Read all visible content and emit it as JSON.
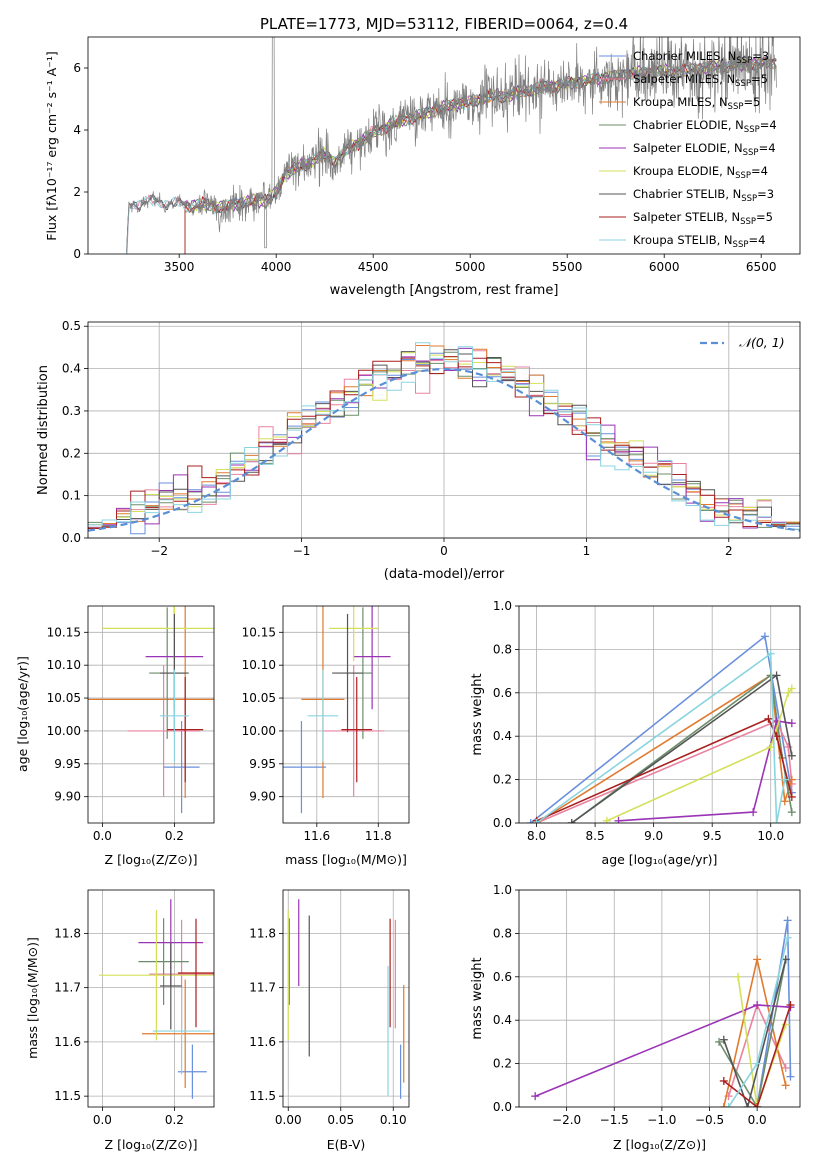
{
  "title": "PLATE=1773, MJD=53112, FIBERID=0064, z=0.4",
  "colors": [
    "#6a8fdc",
    "#e8829f",
    "#e07a2e",
    "#6b8e6b",
    "#9a34b6",
    "#d4e05a",
    "#555555",
    "#aa1f1f",
    "#8ad4df"
  ],
  "legend_spec": [
    {
      "main": "Chabrier MILES, N",
      "sub": "SSP",
      "tail": "=3"
    },
    {
      "main": "Salpeter MILES, N",
      "sub": "SSP",
      "tail": "=5"
    },
    {
      "main": "Kroupa MILES, N",
      "sub": "SSP",
      "tail": "=5"
    },
    {
      "main": "Chabrier ELODIE, N",
      "sub": "SSP",
      "tail": "=4"
    },
    {
      "main": "Salpeter ELODIE, N",
      "sub": "SSP",
      "tail": "=4"
    },
    {
      "main": "Kroupa ELODIE, N",
      "sub": "SSP",
      "tail": "=4"
    },
    {
      "main": "Chabrier STELIB, N",
      "sub": "SSP",
      "tail": "=3"
    },
    {
      "main": "Salpeter STELIB, N",
      "sub": "SSP",
      "tail": "=5"
    },
    {
      "main": "Kroupa STELIB, N",
      "sub": "SSP",
      "tail": "=4"
    }
  ],
  "chart_data": [
    {
      "type": "line",
      "xlabel": "wavelength [Angstrom, rest frame]",
      "ylabel": "Flux [fλ10⁻¹⁷ erg cm⁻² s⁻¹ A⁻¹]",
      "xlim": [
        3030,
        6700
      ],
      "ylim": [
        0,
        7
      ],
      "xticks": [
        3500,
        4000,
        4500,
        5000,
        5500,
        6000,
        6500
      ],
      "yticks": [
        0,
        2,
        4,
        6
      ],
      "spectrum_shape": [
        [
          3230,
          0
        ],
        [
          3240,
          1.6
        ],
        [
          3300,
          1.65
        ],
        [
          3400,
          1.7
        ],
        [
          3500,
          1.6
        ],
        [
          3550,
          1.55
        ],
        [
          3650,
          1.6
        ],
        [
          3700,
          1.5
        ],
        [
          3800,
          1.6
        ],
        [
          3900,
          1.75
        ],
        [
          3950,
          1.7
        ],
        [
          4000,
          2.0
        ],
        [
          4050,
          2.6
        ],
        [
          4150,
          2.9
        ],
        [
          4250,
          3.2
        ],
        [
          4300,
          3.0
        ],
        [
          4400,
          3.5
        ],
        [
          4500,
          3.9
        ],
        [
          4600,
          4.2
        ],
        [
          4700,
          4.4
        ],
        [
          4800,
          4.6
        ],
        [
          4900,
          4.8
        ],
        [
          5000,
          4.9
        ],
        [
          5100,
          5.1
        ],
        [
          5200,
          5.1
        ],
        [
          5300,
          5.3
        ],
        [
          5400,
          5.4
        ],
        [
          5500,
          5.5
        ],
        [
          5600,
          5.6
        ],
        [
          5700,
          5.7
        ],
        [
          5800,
          5.8
        ],
        [
          5900,
          5.85
        ],
        [
          6000,
          5.9
        ],
        [
          6100,
          5.9
        ],
        [
          6200,
          6.0
        ],
        [
          6300,
          6.05
        ],
        [
          6400,
          6.1
        ],
        [
          6500,
          6.15
        ],
        [
          6580,
          6.2
        ]
      ],
      "grid": false,
      "legend_position": "upper right"
    },
    {
      "type": "histogram",
      "xlabel": "(data-model)/error",
      "ylabel": "Normed distribution",
      "xlim": [
        -2.5,
        2.5
      ],
      "ylim": [
        0,
        0.51
      ],
      "xticks": [
        -2,
        -1,
        0,
        1,
        2
      ],
      "yticks": [
        0.0,
        0.1,
        0.2,
        0.3,
        0.4,
        0.5
      ],
      "ytick_labels": [
        "0.0",
        "0.1",
        "0.2",
        "0.3",
        "0.4",
        "0.5"
      ],
      "bin_width": 0.1,
      "legend": "𝒩(0, 1)",
      "grid": true
    },
    {
      "type": "scatter",
      "xlabel": "Z [log₁₀(Z/Z⊙)]",
      "ylabel": "age  [log₁₀(age/yr)]",
      "xlim": [
        -0.04,
        0.31
      ],
      "ylim": [
        9.86,
        10.19
      ],
      "xticks": [
        0.0,
        0.2
      ],
      "xtick_labels": [
        "0.0",
        "0.2"
      ],
      "yticks": [
        9.9,
        9.95,
        10.0,
        10.05,
        10.1,
        10.15
      ],
      "ytick_labels": [
        "9.90",
        "9.95",
        "10.00",
        "10.05",
        "10.10",
        "10.15"
      ],
      "points": [
        {
          "x": 0.22,
          "xerr": 0.05,
          "y": 9.945,
          "yerr": 0.07
        },
        {
          "x": 0.17,
          "xerr": 0.1,
          "y": 10.0,
          "yerr": 0.1
        },
        {
          "x": 0.23,
          "xerr": 0.27,
          "y": 10.048,
          "yerr": 0.15
        },
        {
          "x": 0.18,
          "xerr": 0.05,
          "y": 10.088,
          "yerr": 0.1
        },
        {
          "x": 0.2,
          "xerr": 0.08,
          "y": 10.113,
          "yerr": 0.08
        },
        {
          "x": 0.2,
          "xerr": 0.2,
          "y": 10.156,
          "yerr": 0.05
        },
        {
          "x": 0.2,
          "xerr": 0.04,
          "y": 10.088,
          "yerr": 0.09
        },
        {
          "x": 0.23,
          "xerr": 0.05,
          "y": 10.002,
          "yerr": 0.08
        },
        {
          "x": 0.2,
          "xerr": 0.04,
          "y": 10.023,
          "yerr": 0.07
        }
      ]
    },
    {
      "type": "scatter",
      "xlabel": "mass [log₁₀(M/M⊙)]",
      "ylabel": "",
      "xlim": [
        11.49,
        11.9
      ],
      "ylim": [
        9.86,
        10.19
      ],
      "xticks": [
        11.6,
        11.8
      ],
      "xtick_labels": [
        "11.6",
        "11.8"
      ],
      "yticks": [
        9.9,
        9.95,
        10.0,
        10.05,
        10.1,
        10.15
      ],
      "ytick_labels": [
        "9.90",
        "9.95",
        "10.00",
        "10.05",
        "10.10",
        "10.15"
      ],
      "points": [
        {
          "x": 11.55,
          "xerr": 0.08,
          "y": 9.945,
          "yerr": 0.07
        },
        {
          "x": 11.72,
          "xerr": 0.1,
          "y": 10.0,
          "yerr": 0.1
        },
        {
          "x": 11.62,
          "xerr": 0.07,
          "y": 10.048,
          "yerr": 0.15
        },
        {
          "x": 11.75,
          "xerr": 0.03,
          "y": 10.088,
          "yerr": 0.1
        },
        {
          "x": 11.78,
          "xerr": 0.06,
          "y": 10.113,
          "yerr": 0.08
        },
        {
          "x": 11.72,
          "xerr": 0.08,
          "y": 10.156,
          "yerr": 0.05
        },
        {
          "x": 11.7,
          "xerr": 0.05,
          "y": 10.088,
          "yerr": 0.09
        },
        {
          "x": 11.73,
          "xerr": 0.05,
          "y": 10.002,
          "yerr": 0.08
        },
        {
          "x": 11.62,
          "xerr": 0.05,
          "y": 10.023,
          "yerr": 0.07
        }
      ]
    },
    {
      "type": "line",
      "xlabel": "age  [log₁₀(age/yr)]",
      "ylabel": "mass weight",
      "xlim": [
        7.85,
        10.25
      ],
      "ylim": [
        0,
        1
      ],
      "xticks": [
        8.0,
        8.5,
        9.0,
        9.5,
        10.0
      ],
      "xtick_labels": [
        "8.0",
        "8.5",
        "9.0",
        "9.5",
        "10.0"
      ],
      "yticks": [
        0,
        0.2,
        0.4,
        0.6,
        0.8,
        1.0
      ],
      "ytick_labels": [
        "0.0",
        "0.2",
        "0.4",
        "0.6",
        "0.8",
        "1.0"
      ],
      "grid": true,
      "series": [
        {
          "x": [
            7.95,
            9.95,
            10.18
          ],
          "y": [
            0.0,
            0.86,
            0.14
          ]
        },
        {
          "x": [
            8.0,
            10.05,
            10.15,
            10.18
          ],
          "y": [
            0.0,
            0.47,
            0.35,
            0.18
          ]
        },
        {
          "x": [
            8.0,
            10.0,
            10.12,
            10.18
          ],
          "y": [
            0.0,
            0.68,
            0.1,
            0.2
          ]
        },
        {
          "x": [
            8.3,
            10.0,
            10.1,
            10.18
          ],
          "y": [
            0.0,
            0.68,
            0.3,
            0.05
          ]
        },
        {
          "x": [
            8.7,
            9.85,
            10.05,
            10.18
          ],
          "y": [
            0.01,
            0.05,
            0.47,
            0.46
          ]
        },
        {
          "x": [
            8.6,
            10.0,
            10.15,
            10.18
          ],
          "y": [
            0.01,
            0.35,
            0.6,
            0.62
          ]
        },
        {
          "x": [
            8.3,
            10.05,
            10.18
          ],
          "y": [
            0.0,
            0.68,
            0.31
          ]
        },
        {
          "x": [
            8.0,
            9.98,
            10.05,
            10.18
          ],
          "y": [
            0.01,
            0.48,
            0.4,
            0.12
          ]
        },
        {
          "x": [
            8.0,
            10.0,
            10.05,
            10.12
          ],
          "y": [
            0.0,
            0.78,
            0.0,
            0.2
          ]
        }
      ]
    },
    {
      "type": "scatter",
      "xlabel": "Z [log₁₀(Z/Z⊙)]",
      "ylabel": "mass [log₁₀(M/M⊙)]",
      "xlim": [
        -0.04,
        0.31
      ],
      "ylim": [
        11.48,
        11.88
      ],
      "xticks": [
        0.0,
        0.2
      ],
      "xtick_labels": [
        "0.0",
        "0.2"
      ],
      "yticks": [
        11.5,
        11.6,
        11.7,
        11.8
      ],
      "ytick_labels": [
        "11.5",
        "11.6",
        "11.7",
        "11.8"
      ],
      "points": [
        {
          "x": 0.25,
          "xerr": 0.04,
          "y": 11.545,
          "yerr": 0.05
        },
        {
          "x": 0.22,
          "xerr": 0.09,
          "y": 11.725,
          "yerr": 0.1
        },
        {
          "x": 0.23,
          "xerr": 0.12,
          "y": 11.615,
          "yerr": 0.1
        },
        {
          "x": 0.17,
          "xerr": 0.07,
          "y": 11.748,
          "yerr": 0.08
        },
        {
          "x": 0.19,
          "xerr": 0.09,
          "y": 11.783,
          "yerr": 0.08
        },
        {
          "x": 0.15,
          "xerr": 0.16,
          "y": 11.723,
          "yerr": 0.12
        },
        {
          "x": 0.19,
          "xerr": 0.03,
          "y": 11.703,
          "yerr": 0.08
        },
        {
          "x": 0.26,
          "xerr": 0.05,
          "y": 11.727,
          "yerr": 0.1
        },
        {
          "x": 0.22,
          "xerr": 0.08,
          "y": 11.62,
          "yerr": 0.08
        }
      ]
    },
    {
      "type": "scatter",
      "xlabel": "E(B-V)",
      "ylabel": "",
      "xlim": [
        -0.005,
        0.115
      ],
      "ylim": [
        11.48,
        11.88
      ],
      "xticks": [
        0.0,
        0.05,
        0.1
      ],
      "xtick_labels": [
        "0.00",
        "0.05",
        "0.10"
      ],
      "yticks": [
        11.5,
        11.6,
        11.7,
        11.8
      ],
      "ytick_labels": [
        "11.5",
        "11.6",
        "11.7",
        "11.8"
      ],
      "points": [
        {
          "x": 0.107,
          "y": 11.545,
          "yerr": 0.05
        },
        {
          "x": 0.102,
          "y": 11.725,
          "yerr": 0.1
        },
        {
          "x": 0.11,
          "y": 11.615,
          "yerr": 0.09
        },
        {
          "x": 0.001,
          "y": 11.748,
          "yerr": 0.08
        },
        {
          "x": 0.01,
          "y": 11.783,
          "yerr": 0.08
        },
        {
          "x": 0.0,
          "y": 11.723,
          "yerr": 0.12
        },
        {
          "x": 0.02,
          "y": 11.703,
          "yerr": 0.13
        },
        {
          "x": 0.097,
          "y": 11.727,
          "yerr": 0.1
        },
        {
          "x": 0.095,
          "y": 11.62,
          "yerr": 0.12
        }
      ]
    },
    {
      "type": "line",
      "xlabel": "Z [log₁₀(Z/Z⊙)]",
      "ylabel": "mass weight",
      "xlim": [
        -2.5,
        0.45
      ],
      "ylim": [
        0,
        1
      ],
      "xticks": [
        -2.0,
        -1.5,
        -1.0,
        -0.5,
        0.0
      ],
      "xtick_labels": [
        "−2.0",
        "−1.5",
        "−1.0",
        "−0.5",
        "0.0"
      ],
      "yticks": [
        0,
        0.2,
        0.4,
        0.6,
        0.8,
        1.0
      ],
      "ytick_labels": [
        "0.0",
        "0.2",
        "0.4",
        "0.6",
        "0.8",
        "1.0"
      ],
      "grid": true,
      "series": [
        {
          "x": [
            0.0,
            0.32,
            0.35
          ],
          "y": [
            0.0,
            0.86,
            0.14
          ]
        },
        {
          "x": [
            -0.3,
            0.0,
            0.3
          ],
          "y": [
            0.05,
            0.47,
            0.18
          ]
        },
        {
          "x": [
            -0.35,
            0.0,
            0.3
          ],
          "y": [
            0.0,
            0.68,
            0.1
          ]
        },
        {
          "x": [
            -0.4,
            0.0,
            0.3
          ],
          "y": [
            0.3,
            0.0,
            0.68
          ]
        },
        {
          "x": [
            -2.33,
            0.0,
            0.35
          ],
          "y": [
            0.05,
            0.47,
            0.46
          ]
        },
        {
          "x": [
            -0.2,
            0.0,
            0.3
          ],
          "y": [
            0.6,
            0.0,
            0.38
          ]
        },
        {
          "x": [
            -0.35,
            -0.1,
            0.3
          ],
          "y": [
            0.31,
            0.0,
            0.68
          ]
        },
        {
          "x": [
            -0.35,
            0.0,
            0.35
          ],
          "y": [
            0.12,
            0.0,
            0.47
          ]
        },
        {
          "x": [
            -0.3,
            0.0,
            0.32
          ],
          "y": [
            0.0,
            0.2,
            0.78
          ]
        }
      ]
    }
  ]
}
